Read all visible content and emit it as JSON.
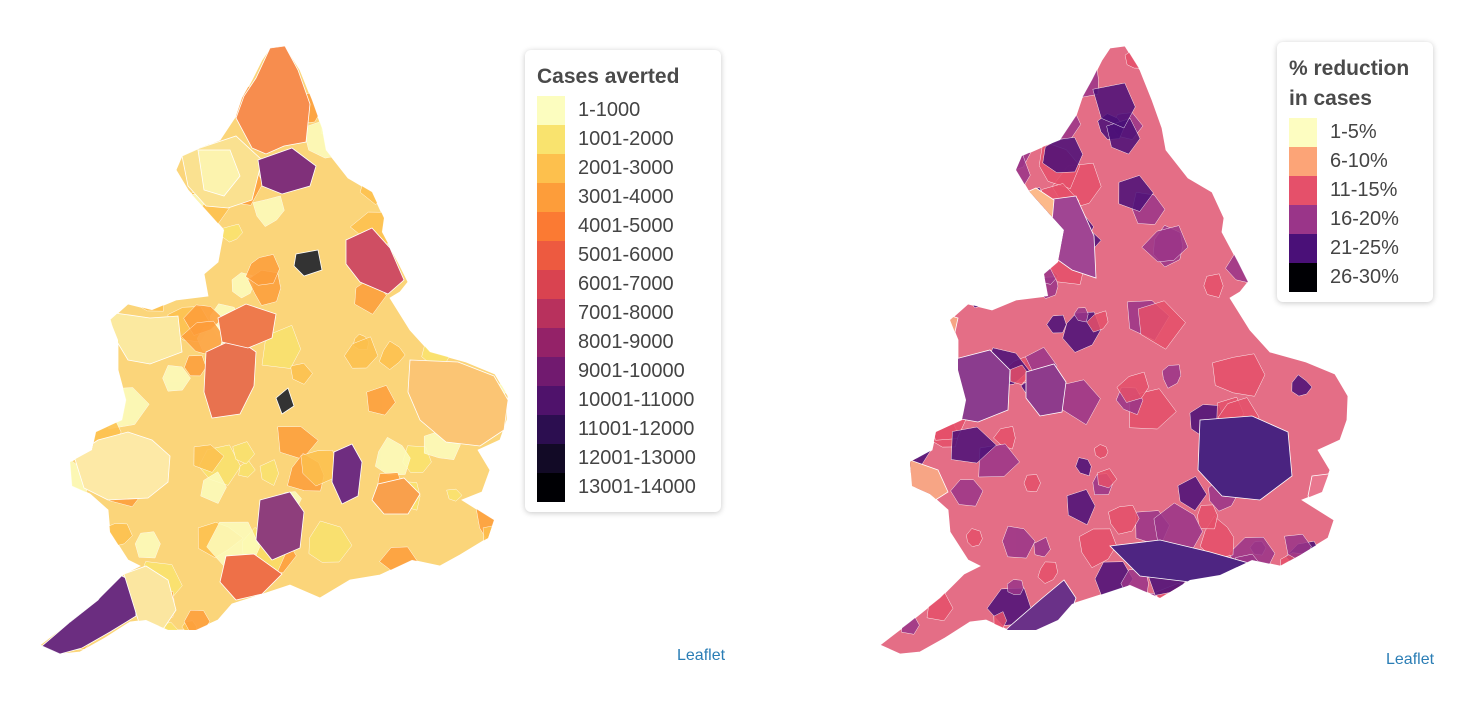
{
  "maps": [
    {
      "legend": {
        "title": "Cases averted",
        "items": [
          {
            "label": "1-1000",
            "color": "#fcfdbf"
          },
          {
            "label": "1001-2000",
            "color": "#f9e36e"
          },
          {
            "label": "2001-3000",
            "color": "#fdc04d"
          },
          {
            "label": "3001-4000",
            "color": "#fd9d3a"
          },
          {
            "label": "4001-5000",
            "color": "#fb7a33"
          },
          {
            "label": "5001-6000",
            "color": "#ed5a40"
          },
          {
            "label": "6001-7000",
            "color": "#d94350"
          },
          {
            "label": "7001-8000",
            "color": "#b8315d"
          },
          {
            "label": "8001-9000",
            "color": "#942268"
          },
          {
            "label": "9001-10000",
            "color": "#711a6f"
          },
          {
            "label": "10001-11000",
            "color": "#4f126b"
          },
          {
            "label": "11001-12000",
            "color": "#2c0e50"
          },
          {
            "label": "12001-13000",
            "color": "#120a26"
          },
          {
            "label": "13001-14000",
            "color": "#000004"
          }
        ]
      },
      "attribution": "Leaflet",
      "land_color": "#fbd57a",
      "highlight_regions": [
        {
          "name": "northumberland",
          "color": "#f78d4e"
        },
        {
          "name": "north-pennines",
          "color": "#fae190"
        },
        {
          "name": "cumbria-lakes",
          "color": "#fcf3ae"
        },
        {
          "name": "durham-cluster",
          "color": "#80307a"
        },
        {
          "name": "york-dark",
          "color": "#333333"
        },
        {
          "name": "east-yorkshire",
          "color": "#cf4e63"
        },
        {
          "name": "wales-north",
          "color": "#fbe9a0"
        },
        {
          "name": "wales-south",
          "color": "#fde9a6"
        },
        {
          "name": "west-midlands",
          "color": "#e8724f"
        },
        {
          "name": "birmingham-dark",
          "color": "#333333"
        },
        {
          "name": "manchester",
          "color": "#ee7a4c"
        },
        {
          "name": "somerset-purple",
          "color": "#8e3e7c"
        },
        {
          "name": "cornwall",
          "color": "#6b2d80"
        },
        {
          "name": "devon",
          "color": "#fbe6a0"
        },
        {
          "name": "dorset",
          "color": "#ee7048"
        },
        {
          "name": "london",
          "color": "#f9a04c"
        },
        {
          "name": "cambridge-purple",
          "color": "#6f2d80"
        },
        {
          "name": "east-anglia",
          "color": "#fbc574"
        }
      ]
    },
    {
      "legend": {
        "title": "% reduction in cases",
        "items": [
          {
            "label": "1-5%",
            "color": "#fdfdc1"
          },
          {
            "label": "6-10%",
            "color": "#fca477"
          },
          {
            "label": "11-15%",
            "color": "#e5506a"
          },
          {
            "label": "16-20%",
            "color": "#9a3589"
          },
          {
            "label": "21-25%",
            "color": "#4a1078"
          },
          {
            "label": "26-30%",
            "color": "#000004"
          }
        ]
      },
      "attribution": "Leaflet",
      "land_color": "#e46e86",
      "highlight_regions": [
        {
          "name": "northumberland",
          "color": "#e36b85"
        },
        {
          "name": "cumbria",
          "color": "#8a3f8e"
        },
        {
          "name": "durham-orange",
          "color": "#fbb382"
        },
        {
          "name": "yorkshire-purple",
          "color": "#8e3c8e"
        },
        {
          "name": "east-yorkshire",
          "color": "#a04593"
        },
        {
          "name": "york-orange",
          "color": "#fcb98a"
        },
        {
          "name": "leeds-yellow",
          "color": "#fdf4c0"
        },
        {
          "name": "manchester-orange",
          "color": "#fbab80"
        },
        {
          "name": "wales-north-orange",
          "color": "#f6a584"
        },
        {
          "name": "wales-west-purple",
          "color": "#8e3b8c"
        },
        {
          "name": "south-wales-orange",
          "color": "#f7a585"
        },
        {
          "name": "midlands-purple",
          "color": "#8b3c8e"
        },
        {
          "name": "east-anglia-dark",
          "color": "#5c2b86"
        },
        {
          "name": "home-counties-dark",
          "color": "#4a2380"
        },
        {
          "name": "south-coast-dark",
          "color": "#4e2582"
        },
        {
          "name": "london-mix",
          "color": "#e9778f"
        },
        {
          "name": "cornwall",
          "color": "#6a3188"
        },
        {
          "name": "isle-of-wight",
          "color": "#333333"
        }
      ]
    }
  ]
}
